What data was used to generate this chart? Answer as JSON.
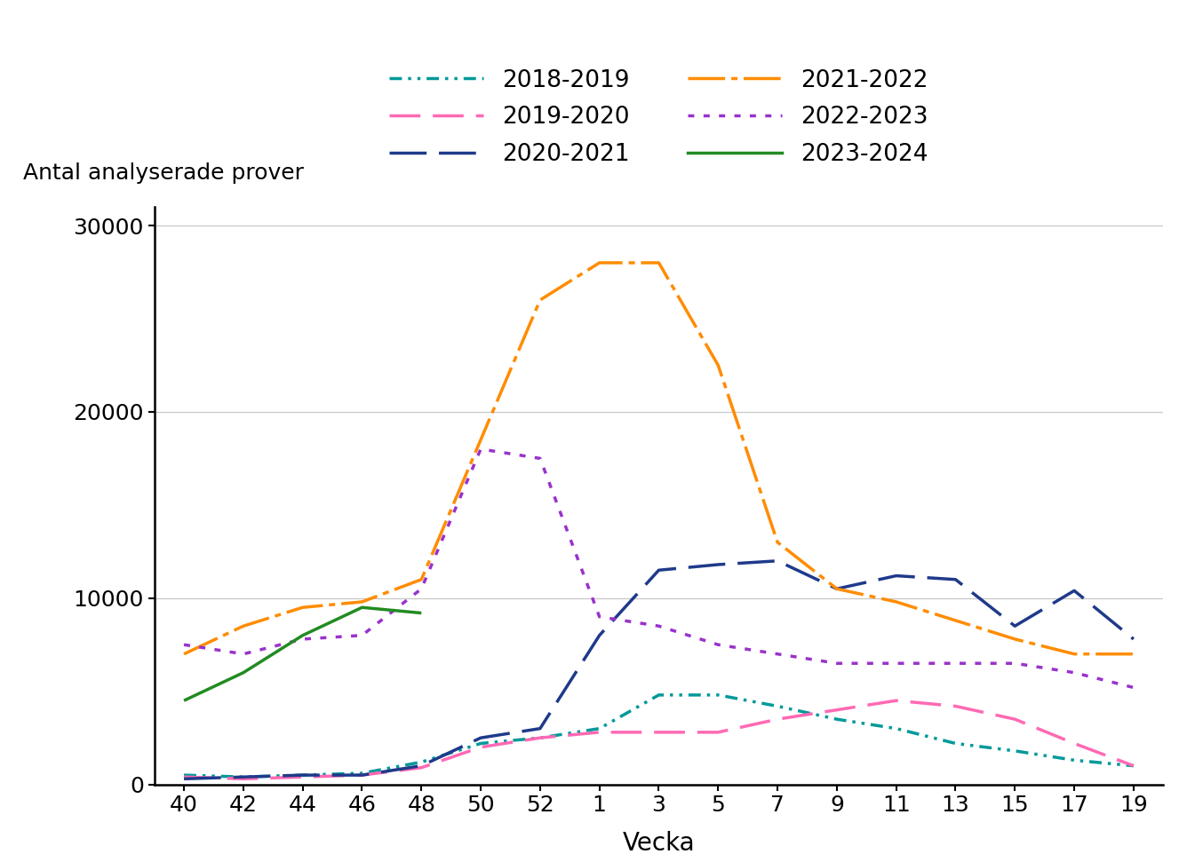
{
  "x_labels": [
    40,
    42,
    44,
    46,
    48,
    50,
    52,
    1,
    3,
    5,
    7,
    9,
    11,
    13,
    15,
    17,
    19
  ],
  "x_positions": [
    0,
    1,
    2,
    3,
    4,
    5,
    6,
    7,
    8,
    9,
    10,
    11,
    12,
    13,
    14,
    15,
    16
  ],
  "series": {
    "2018-2019": {
      "color": "#009999",
      "dash_pattern": [
        4,
        2,
        1,
        2,
        1,
        2
      ],
      "linewidth": 2.5,
      "values": [
        500,
        400,
        500,
        600,
        1200,
        2200,
        2500,
        3000,
        4800,
        4800,
        4200,
        3500,
        3000,
        2200,
        1800,
        1300,
        1000
      ]
    },
    "2019-2020": {
      "color": "#ff69b4",
      "dash_pattern": [
        10,
        4
      ],
      "linewidth": 2.5,
      "values": [
        400,
        300,
        400,
        500,
        900,
        2000,
        2500,
        2800,
        2800,
        2800,
        3500,
        4000,
        4500,
        4200,
        3500,
        2200,
        1000
      ]
    },
    "2020-2021": {
      "color": "#1f3a8a",
      "dash_pattern": [
        12,
        4
      ],
      "linewidth": 2.5,
      "values": [
        300,
        400,
        500,
        500,
        1000,
        2500,
        3000,
        8000,
        11500,
        11800,
        12000,
        10500,
        11200,
        11000,
        8500,
        10400,
        7800
      ]
    },
    "2021-2022": {
      "color": "#ff8c00",
      "dash_pattern": [
        12,
        2,
        2,
        2
      ],
      "linewidth": 2.5,
      "values": [
        7000,
        8500,
        9500,
        9800,
        11000,
        18500,
        26000,
        28000,
        28000,
        22500,
        13000,
        10500,
        9800,
        8800,
        7800,
        7000,
        7000
      ]
    },
    "2022-2023": {
      "color": "#9932cc",
      "dash_pattern": [
        2,
        3
      ],
      "linewidth": 2.5,
      "values": [
        7500,
        7000,
        7800,
        8000,
        10500,
        18000,
        17500,
        9000,
        8500,
        7500,
        7000,
        6500,
        6500,
        6500,
        6500,
        6000,
        5200
      ]
    },
    "2023-2024": {
      "color": "#228b22",
      "dash_pattern": null,
      "linewidth": 2.5,
      "values": [
        4500,
        6000,
        8000,
        9500,
        9200,
        null,
        null,
        null,
        null,
        null,
        null,
        null,
        null,
        null,
        null,
        null,
        null
      ]
    }
  },
  "ylabel": "Antal analyserade prover",
  "xlabel": "Vecka",
  "ylim": [
    0,
    31000
  ],
  "yticks": [
    0,
    10000,
    20000,
    30000
  ],
  "grid_color": "#c8c8c8",
  "background_color": "#ffffff",
  "legend_col1": [
    "2018-2019",
    "2020-2021",
    "2022-2023"
  ],
  "legend_col2": [
    "2019-2020",
    "2021-2022",
    "2023-2024"
  ]
}
